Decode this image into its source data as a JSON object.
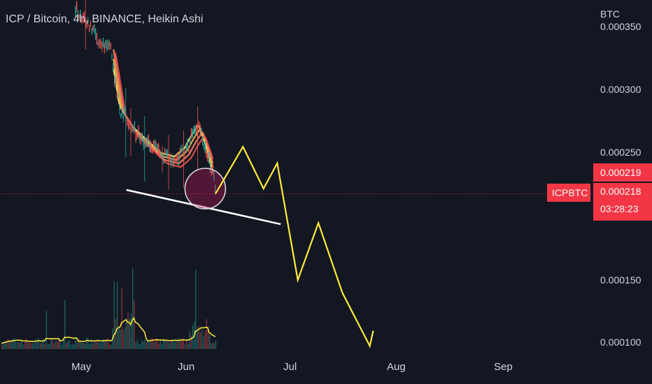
{
  "header": {
    "title": "ICP / Bitcoin, 4h, BINANCE, Heikin Ashi",
    "currency_unit": "BTC"
  },
  "price_tags": {
    "symbol": "ICPBTC",
    "upper_price": "0.000219",
    "last_price": "0.000218",
    "countdown": "03:28:23"
  },
  "colors": {
    "background": "#131722",
    "price_tag": "#f23645",
    "projection": "#ffeb3b",
    "trendline": "#ffffff",
    "ribbon": [
      "#fff176",
      "#ffb74d",
      "#ff8a65",
      "#ef5350"
    ],
    "candle_up": "#26a69a",
    "candle_down": "#ef5350"
  },
  "chart_data": {
    "type": "line",
    "xlabel": "",
    "ylabel": "",
    "y_unit": "BTC",
    "y_ticks": [
      "0.000100",
      "0.000150",
      "0.000200",
      "0.000250",
      "0.000300",
      "0.000350"
    ],
    "x_ticks": [
      "May",
      "Jun",
      "Jul",
      "Aug",
      "Sep"
    ],
    "ylim": [
      8.5e-05,
      0.00037
    ],
    "grid": false,
    "last_price": 0.000218,
    "price_series": {
      "name": "ICP / Bitcoin",
      "x": [
        "2021-04-29",
        "2021-05-03",
        "2021-05-06",
        "2021-05-09",
        "2021-05-12",
        "2021-05-16",
        "2021-05-20",
        "2021-05-24",
        "2021-05-28",
        "2021-05-31",
        "2021-06-02",
        "2021-06-04",
        "2021-06-06",
        "2021-06-08",
        "2021-06-09"
      ],
      "y": [
        0.000365,
        0.00035,
        0.00034,
        0.000335,
        0.000285,
        0.000268,
        0.000258,
        0.000248,
        0.000245,
        0.000252,
        0.000262,
        0.00027,
        0.000255,
        0.000235,
        0.00022
      ]
    },
    "trendline": {
      "x": [
        "2021-05-14",
        "2021-06-28"
      ],
      "y": [
        0.000221,
        0.000194
      ]
    },
    "projection": {
      "x": [
        "2021-06-09",
        "2021-06-17",
        "2021-06-23",
        "2021-06-27",
        "2021-07-03",
        "2021-07-09",
        "2021-07-16",
        "2021-07-24",
        "2021-07-25"
      ],
      "y": [
        0.000218,
        0.000255,
        0.000222,
        0.000242,
        0.00015,
        0.000195,
        0.00014,
        9.8e-05,
        0.00011
      ]
    },
    "highlight_circle": {
      "x": "2021-06-06",
      "y": 0.000222
    }
  }
}
